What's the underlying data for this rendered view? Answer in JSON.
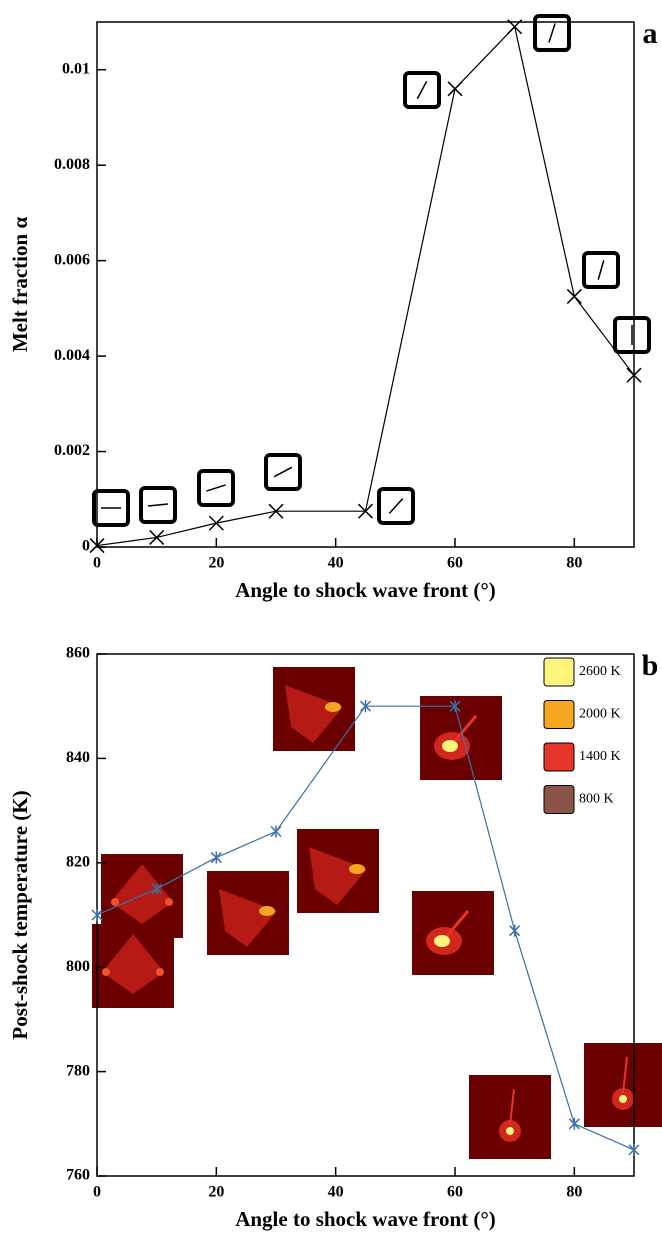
{
  "chart_data": [
    {
      "type": "line",
      "panel_label": "a",
      "xlabel": "Angle to shock wave front (°)",
      "ylabel": "Melt fraction α",
      "x": [
        0,
        10,
        20,
        30,
        45,
        60,
        70,
        80,
        90
      ],
      "series": [
        {
          "color": "#000000",
          "marker": "x",
          "values": [
            3e-05,
            0.0002,
            0.0005,
            0.00075,
            0.00075,
            0.0096,
            0.0109,
            0.00525,
            0.0036
          ]
        }
      ],
      "xlim": [
        0,
        90
      ],
      "ylim": [
        0,
        0.011
      ],
      "xticks": [
        0,
        20,
        40,
        60,
        80
      ],
      "yticks": [
        0,
        0.002,
        0.004,
        0.006,
        0.008,
        0.01
      ]
    },
    {
      "type": "line",
      "panel_label": "b",
      "xlabel": "Angle to shock wave front (°)",
      "ylabel": "Post-shock temperature (K)",
      "x": [
        0,
        10,
        20,
        30,
        45,
        60,
        70,
        80,
        90
      ],
      "series": [
        {
          "color": "#3a70a8",
          "marker": "asterisk",
          "values": [
            810,
            815,
            821,
            826,
            850,
            850,
            807,
            770,
            765
          ]
        }
      ],
      "xlim": [
        0,
        90
      ],
      "ylim": [
        760,
        860
      ],
      "xticks": [
        0,
        20,
        40,
        60,
        80
      ],
      "yticks": [
        760,
        780,
        800,
        820,
        840,
        860
      ],
      "legend": [
        {
          "label": "2600 K",
          "color": "#fff47c"
        },
        {
          "label": "2000 K",
          "color": "#f5a722"
        },
        {
          "label": "1400 K",
          "color": "#e5352b"
        },
        {
          "label": "800 K",
          "color": "#8a5548"
        }
      ]
    }
  ]
}
